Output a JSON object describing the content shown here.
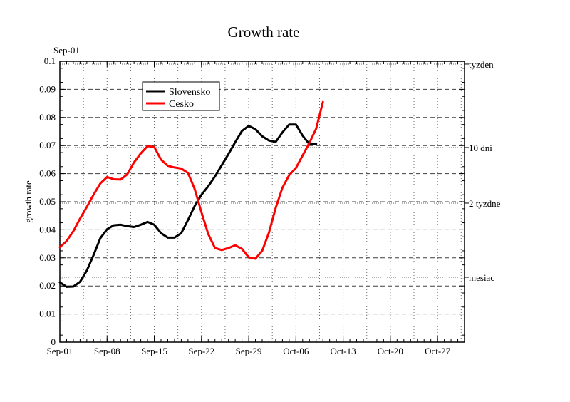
{
  "chart_data": {
    "type": "line",
    "title": "Growth rate",
    "top_left_label": "Sep-01",
    "xlabel": "",
    "ylabel": "growth rate",
    "x_start": "Sep-01",
    "xlim_days": [
      0,
      60
    ],
    "x_tick_labels": [
      "Sep-01",
      "Sep-08",
      "Sep-15",
      "Sep-22",
      "Sep-29",
      "Oct-06",
      "Oct-13",
      "Oct-20",
      "Oct-27"
    ],
    "x_tick_days": [
      0,
      7,
      14,
      21,
      28,
      35,
      42,
      49,
      56
    ],
    "ylim": [
      0,
      0.1
    ],
    "y_ticks": [
      0,
      0.01,
      0.02,
      0.03,
      0.04,
      0.05,
      0.06,
      0.07,
      0.08,
      0.09,
      0.1
    ],
    "y_tick_labels": [
      "0",
      "0.01",
      "0.02",
      "0.03",
      "0.04",
      "0.05",
      "0.06",
      "0.07",
      "0.08",
      "0.09",
      "0.1"
    ],
    "grid": true,
    "legend_position": "top-left",
    "right_axis": [
      {
        "label": "tyzden",
        "value": 0.099
      },
      {
        "label": "10 dni",
        "value": 0.0693
      },
      {
        "label": "2 tyzdne",
        "value": 0.0495
      },
      {
        "label": "mesiac",
        "value": 0.0231
      }
    ],
    "series": [
      {
        "name": "Slovensko",
        "color": "#000000",
        "x": [
          0,
          1,
          2,
          3,
          4,
          5,
          6,
          7,
          8,
          9,
          10,
          11,
          12,
          13,
          14,
          15,
          16,
          17,
          18,
          19,
          20,
          21,
          22,
          23,
          24,
          25,
          26,
          27,
          28,
          29,
          30,
          31,
          32,
          33,
          34,
          35,
          36,
          37,
          38
        ],
        "y": [
          0.0213,
          0.0197,
          0.0198,
          0.0215,
          0.0255,
          0.031,
          0.037,
          0.0402,
          0.0416,
          0.0418,
          0.0413,
          0.041,
          0.0418,
          0.0428,
          0.0418,
          0.0388,
          0.0372,
          0.0372,
          0.0388,
          0.0435,
          0.0485,
          0.0525,
          0.0555,
          0.059,
          0.063,
          0.067,
          0.0712,
          0.0752,
          0.077,
          0.0758,
          0.0733,
          0.0718,
          0.0713,
          0.0747,
          0.0775,
          0.0775,
          0.0735,
          0.0705,
          0.0706
        ]
      },
      {
        "name": "Cesko",
        "color": "#ff0000",
        "x": [
          0,
          1,
          2,
          3,
          4,
          5,
          6,
          7,
          8,
          9,
          10,
          11,
          12,
          13,
          14,
          15,
          16,
          17,
          18,
          19,
          20,
          21,
          22,
          23,
          24,
          25,
          26,
          27,
          28,
          29,
          30,
          31,
          32,
          33,
          34,
          35,
          36,
          37,
          38,
          39
        ],
        "y": [
          0.0338,
          0.036,
          0.0395,
          0.044,
          0.0482,
          0.0525,
          0.0565,
          0.0588,
          0.058,
          0.0579,
          0.0598,
          0.064,
          0.0672,
          0.0698,
          0.0695,
          0.065,
          0.0628,
          0.0622,
          0.0618,
          0.0602,
          0.0545,
          0.0462,
          0.0385,
          0.0335,
          0.0328,
          0.0335,
          0.0345,
          0.0332,
          0.0302,
          0.0297,
          0.0325,
          0.039,
          0.0478,
          0.055,
          0.0595,
          0.062,
          0.0665,
          0.071,
          0.076,
          0.0855
        ]
      }
    ]
  }
}
